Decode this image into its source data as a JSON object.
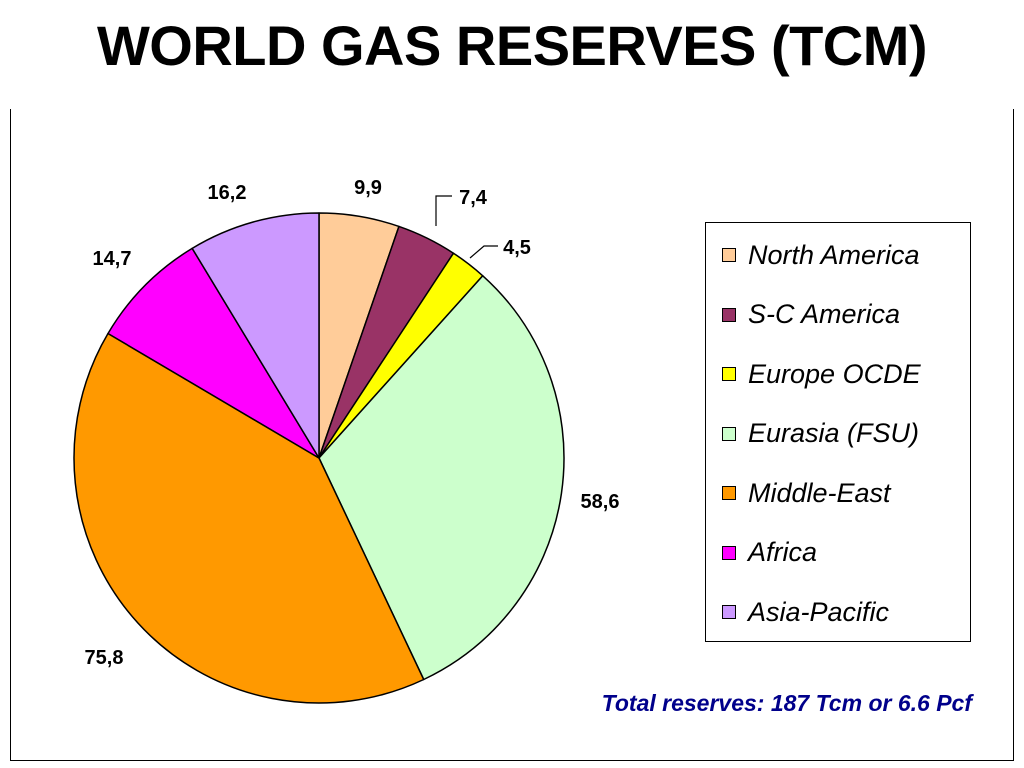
{
  "title": "WORLD GAS RESERVES (TCM)",
  "note": "Total reserves: 187 Tcm or 6.6 Pcf",
  "chart_data": {
    "type": "pie",
    "categories": [
      "North America",
      "S-C America",
      "Europe OCDE",
      "Eurasia (FSU)",
      "Middle-East",
      "Africa",
      "Asia-Pacific"
    ],
    "values": [
      9.9,
      7.4,
      4.5,
      58.6,
      75.8,
      14.7,
      16.2
    ],
    "value_labels": [
      "9,9",
      "7,4",
      "4,5",
      "58,6",
      "75,8",
      "14,7",
      "16,2"
    ],
    "colors": [
      "#ffcc99",
      "#993366",
      "#ffff00",
      "#ccffcc",
      "#ff9900",
      "#ff00ff",
      "#cc99ff"
    ],
    "start_angle": "top (12 o'clock), clockwise",
    "legend_position": "right",
    "legend": [
      "North America",
      "S-C America",
      "Europe OCDE",
      "Eurasia (FSU)",
      "Middle-East",
      "Africa",
      "Asia-Pacific"
    ]
  }
}
